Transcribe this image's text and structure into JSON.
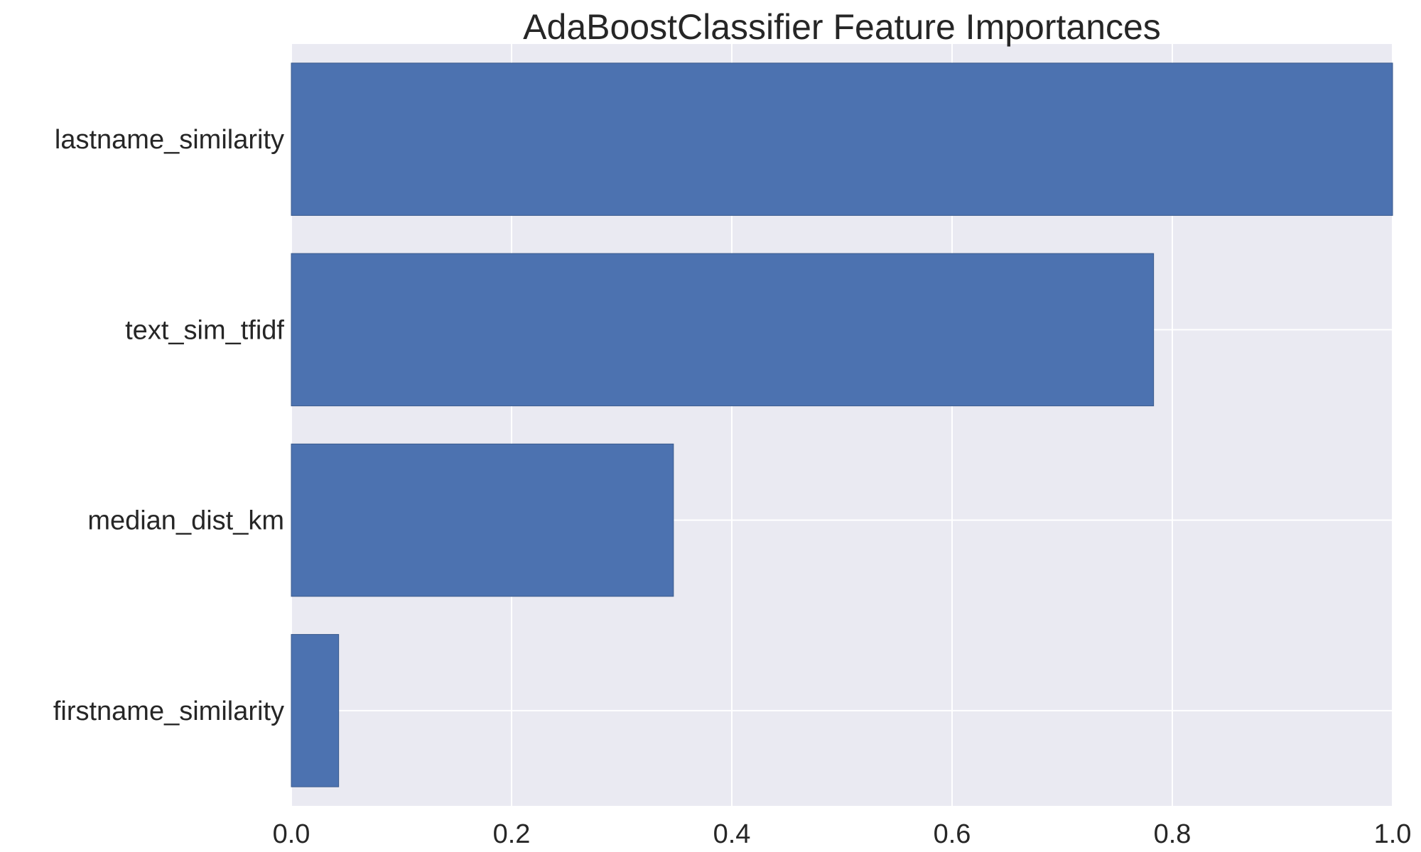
{
  "chart_data": {
    "type": "bar",
    "orientation": "horizontal",
    "title": "AdaBoostClassifier Feature Importances",
    "xlabel": "",
    "ylabel": "",
    "categories": [
      "lastname_similarity",
      "text_sim_tfidf",
      "median_dist_km",
      "firstname_similarity"
    ],
    "values": [
      1.0,
      0.783,
      0.347,
      0.043
    ],
    "xlim": [
      0,
      1.0
    ],
    "xticks": [
      "0.0",
      "0.2",
      "0.4",
      "0.6",
      "0.8",
      "1.0"
    ],
    "grid": true,
    "legend": "none",
    "colors": {
      "bar": "#4c72b0",
      "bar_edge": "#3a5a8c",
      "plot_background": "#eaeaf2",
      "grid": "#ffffff",
      "text": "#262626"
    }
  }
}
